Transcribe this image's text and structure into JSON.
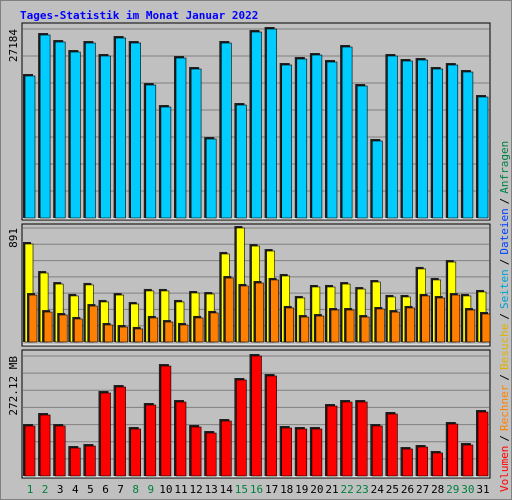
{
  "chart_data": {
    "type": "bar",
    "title": "Tages-Statistik im Monat Januar 2022",
    "categories": [
      "1",
      "2",
      "3",
      "4",
      "5",
      "6",
      "7",
      "8",
      "9",
      "10",
      "11",
      "12",
      "13",
      "14",
      "15",
      "16",
      "17",
      "18",
      "19",
      "20",
      "21",
      "22",
      "23",
      "24",
      "25",
      "26",
      "27",
      "28",
      "29",
      "30",
      "31"
    ],
    "category_colors": [
      "#008040",
      "#008040",
      "#000000",
      "#000000",
      "#000000",
      "#000000",
      "#000000",
      "#008040",
      "#008040",
      "#000000",
      "#000000",
      "#000000",
      "#000000",
      "#000000",
      "#008040",
      "#008040",
      "#000000",
      "#000000",
      "#000000",
      "#000000",
      "#000000",
      "#008040",
      "#008040",
      "#000000",
      "#000000",
      "#000000",
      "#000000",
      "#000000",
      "#008040",
      "#008040",
      "#000000"
    ],
    "panels": [
      {
        "ylim": [
          0,
          27184
        ],
        "yticks": [
          27184
        ],
        "series": [
          {
            "color": "#00ccff",
            "values": [
              20424,
              26318,
              25310,
              23873,
              25167,
              23298,
              25886,
              25167,
              19127,
              15963,
              23010,
              21429,
              11361,
              25167,
              16251,
              26750,
              27184,
              22004,
              22867,
              23442,
              22435,
              24593,
              18984,
              11074,
              23298,
              22579,
              22723,
              21429,
              22004,
              20997,
              17402
            ]
          }
        ]
      },
      {
        "ylim": [
          0,
          891
        ],
        "yticks": [
          891
        ],
        "series": [
          {
            "color": "#ffff00",
            "values": [
              766,
              539,
              453,
              360,
              446,
              313,
              367,
              297,
              399,
              399,
              313,
              383,
              375,
              688,
              891,
              750,
              711,
              516,
              344,
              430,
              430,
              453,
              414,
              469,
              352,
              352,
              571,
              485,
              625,
              360,
              391
            ]
          },
          {
            "color": "#ff8000",
            "values": [
              367,
              234,
              211,
              180,
              281,
              133,
              117,
              102,
              188,
              156,
              133,
              188,
              227,
              500,
              438,
              461,
              485,
              266,
              195,
              203,
              250,
              250,
              195,
              258,
              234,
              266,
              360,
              344,
              367,
              250,
              219
            ]
          }
        ]
      },
      {
        "ylim": [
          0,
          272.12
        ],
        "yticks": [
          {
            "value": 272.12,
            "label": "272.12 MB"
          }
        ],
        "series": [
          {
            "color": "#ff0000",
            "values": [
              113.4,
              138.3,
              113.4,
              63.5,
              68.0,
              188.2,
              201.8,
              106.6,
              161.0,
              249.4,
              167.8,
              111.1,
              97.5,
              124.7,
              217.7,
              272.12,
              226.8,
              108.8,
              106.6,
              106.6,
              158.7,
              167.8,
              167.8,
              113.4,
              140.6,
              61.2,
              65.8,
              52.2,
              117.9,
              70.3,
              145.1
            ]
          }
        ]
      }
    ],
    "legend": [
      {
        "name": "Volumen",
        "color": "#ff0000"
      },
      {
        "name": "Rechner",
        "color": "#ff8000"
      },
      {
        "name": "Besuche",
        "color": "#e0b000"
      },
      {
        "name": "Seiten",
        "color": "#00a0d0"
      },
      {
        "name": "Dateien",
        "color": "#0040ff"
      },
      {
        "name": "Anfragen",
        "color": "#008040"
      }
    ],
    "legend_separator": "/"
  }
}
